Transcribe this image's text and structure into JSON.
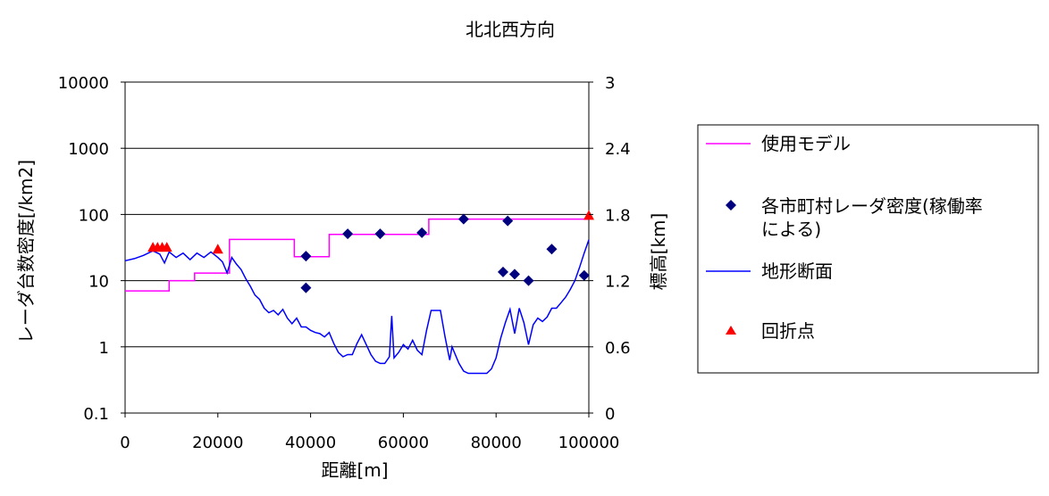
{
  "chart_data": {
    "type": "line",
    "title": "北北西方向",
    "xlabel": "距離[m]",
    "ylabel_left": "レーダ台数密度[/km2]",
    "ylabel_right": "標高[km]",
    "x_range": [
      0,
      100000
    ],
    "x_ticks": [
      "0",
      "20000",
      "40000",
      "60000",
      "80000",
      "100000"
    ],
    "y_left_scale": "log",
    "y_left_range": [
      0.1,
      10000
    ],
    "y_left_ticks": [
      "0.1",
      "1",
      "10",
      "100",
      "1000",
      "10000"
    ],
    "y_right_range": [
      0,
      3
    ],
    "y_right_ticks": [
      "0",
      "0.6",
      "1.2",
      "1.8",
      "2.4",
      "3"
    ],
    "grid": true,
    "legend_position": "right",
    "series": [
      {
        "name": "使用モデル",
        "axis": "left",
        "color": "#ff00ff",
        "marker": "none",
        "points": [
          [
            0,
            7
          ],
          [
            9500,
            7
          ],
          [
            9500,
            10
          ],
          [
            15000,
            10
          ],
          [
            15000,
            13
          ],
          [
            22500,
            13
          ],
          [
            22500,
            42
          ],
          [
            36500,
            42
          ],
          [
            36500,
            23
          ],
          [
            44000,
            23
          ],
          [
            44000,
            50
          ],
          [
            65500,
            50
          ],
          [
            65500,
            85
          ],
          [
            100000,
            85
          ]
        ]
      },
      {
        "name": "各市町村レーダ密度(稼働率による)",
        "axis": "left",
        "color": "#00007f",
        "marker": "diamond",
        "points": [
          [
            39000,
            23.5
          ],
          [
            39000,
            7.8
          ],
          [
            48000,
            51
          ],
          [
            55000,
            51
          ],
          [
            64000,
            53
          ],
          [
            73000,
            85
          ],
          [
            82500,
            80
          ],
          [
            81500,
            13.5
          ],
          [
            84000,
            12.5
          ],
          [
            87000,
            10
          ],
          [
            92000,
            30
          ],
          [
            99000,
            12
          ]
        ]
      },
      {
        "name": "地形断面",
        "axis": "right",
        "color": "#0000ff",
        "marker": "none",
        "points": [
          [
            0,
            1.38
          ],
          [
            2000,
            1.4
          ],
          [
            4000,
            1.43
          ],
          [
            6000,
            1.47
          ],
          [
            7500,
            1.44
          ],
          [
            8500,
            1.36
          ],
          [
            9500,
            1.46
          ],
          [
            11000,
            1.41
          ],
          [
            12500,
            1.45
          ],
          [
            14000,
            1.39
          ],
          [
            15500,
            1.45
          ],
          [
            17000,
            1.41
          ],
          [
            18500,
            1.46
          ],
          [
            20000,
            1.41
          ],
          [
            21000,
            1.37
          ],
          [
            22000,
            1.27
          ],
          [
            23000,
            1.41
          ],
          [
            24000,
            1.35
          ],
          [
            25000,
            1.3
          ],
          [
            26000,
            1.22
          ],
          [
            27000,
            1.15
          ],
          [
            28000,
            1.07
          ],
          [
            29000,
            1.03
          ],
          [
            30000,
            0.95
          ],
          [
            31000,
            0.91
          ],
          [
            32000,
            0.93
          ],
          [
            33000,
            0.89
          ],
          [
            34000,
            0.94
          ],
          [
            35000,
            0.86
          ],
          [
            36000,
            0.81
          ],
          [
            37000,
            0.86
          ],
          [
            38000,
            0.78
          ],
          [
            39000,
            0.78
          ],
          [
            40000,
            0.75
          ],
          [
            41000,
            0.73
          ],
          [
            42000,
            0.72
          ],
          [
            43000,
            0.69
          ],
          [
            44000,
            0.73
          ],
          [
            45000,
            0.63
          ],
          [
            46000,
            0.55
          ],
          [
            47000,
            0.51
          ],
          [
            48000,
            0.53
          ],
          [
            49000,
            0.53
          ],
          [
            50000,
            0.63
          ],
          [
            51000,
            0.71
          ],
          [
            52000,
            0.62
          ],
          [
            53000,
            0.53
          ],
          [
            54000,
            0.47
          ],
          [
            55000,
            0.45
          ],
          [
            56000,
            0.45
          ],
          [
            57000,
            0.51
          ],
          [
            57500,
            0.88
          ],
          [
            58000,
            0.5
          ],
          [
            59000,
            0.55
          ],
          [
            60000,
            0.62
          ],
          [
            61000,
            0.58
          ],
          [
            62000,
            0.66
          ],
          [
            63000,
            0.57
          ],
          [
            64000,
            0.53
          ],
          [
            65000,
            0.75
          ],
          [
            66000,
            0.93
          ],
          [
            67000,
            0.93
          ],
          [
            68000,
            0.93
          ],
          [
            69000,
            0.69
          ],
          [
            70000,
            0.48
          ],
          [
            70500,
            0.6
          ],
          [
            71000,
            0.55
          ],
          [
            72000,
            0.45
          ],
          [
            73000,
            0.38
          ],
          [
            74000,
            0.36
          ],
          [
            76000,
            0.36
          ],
          [
            78000,
            0.36
          ],
          [
            79000,
            0.4
          ],
          [
            80000,
            0.5
          ],
          [
            81000,
            0.68
          ],
          [
            82000,
            0.82
          ],
          [
            83000,
            0.94
          ],
          [
            84000,
            0.72
          ],
          [
            85000,
            0.95
          ],
          [
            86000,
            0.82
          ],
          [
            87000,
            0.62
          ],
          [
            88000,
            0.8
          ],
          [
            89000,
            0.86
          ],
          [
            90000,
            0.83
          ],
          [
            91000,
            0.87
          ],
          [
            92000,
            0.95
          ],
          [
            93000,
            0.95
          ],
          [
            94000,
            1.0
          ],
          [
            95000,
            1.05
          ],
          [
            96000,
            1.12
          ],
          [
            97000,
            1.2
          ],
          [
            98000,
            1.32
          ],
          [
            99000,
            1.45
          ],
          [
            100000,
            1.57
          ]
        ]
      },
      {
        "name": "回折点",
        "axis": "left",
        "color": "#ff0000",
        "marker": "triangle",
        "points": [
          [
            6000,
            32
          ],
          [
            7000,
            32
          ],
          [
            8000,
            32
          ],
          [
            9000,
            32
          ],
          [
            20000,
            30
          ],
          [
            100000,
            97
          ]
        ]
      }
    ]
  }
}
